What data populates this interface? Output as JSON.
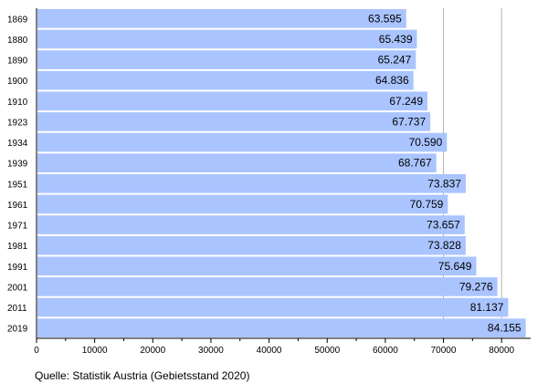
{
  "chart_data": {
    "type": "bar",
    "orientation": "horizontal",
    "categories": [
      "1869",
      "1880",
      "1890",
      "1900",
      "1910",
      "1923",
      "1934",
      "1939",
      "1951",
      "1961",
      "1971",
      "1981",
      "1991",
      "2001",
      "2011",
      "2019"
    ],
    "values": [
      63595,
      65439,
      65247,
      64836,
      67249,
      67737,
      70590,
      68767,
      73837,
      70759,
      73657,
      73828,
      75649,
      79276,
      81137,
      84155
    ],
    "value_labels": [
      "63.595",
      "65.439",
      "65.247",
      "64.836",
      "67.249",
      "67.737",
      "70.590",
      "68.767",
      "73.837",
      "70.759",
      "73.657",
      "73.828",
      "75.649",
      "79.276",
      "81.137",
      "84.155"
    ],
    "xlim": [
      0,
      85000
    ],
    "x_ticks": [
      0,
      10000,
      20000,
      30000,
      40000,
      50000,
      60000,
      70000,
      80000
    ],
    "x_tick_labels": [
      "0",
      "10000",
      "20000",
      "30000",
      "40000",
      "50000",
      "60000",
      "70000",
      "80000"
    ],
    "grid": "vertical lines at 70000 and 80000",
    "bar_color": "#aac4ff",
    "source": "Quelle: Statistik Austria (Gebietsstand 2020)"
  }
}
